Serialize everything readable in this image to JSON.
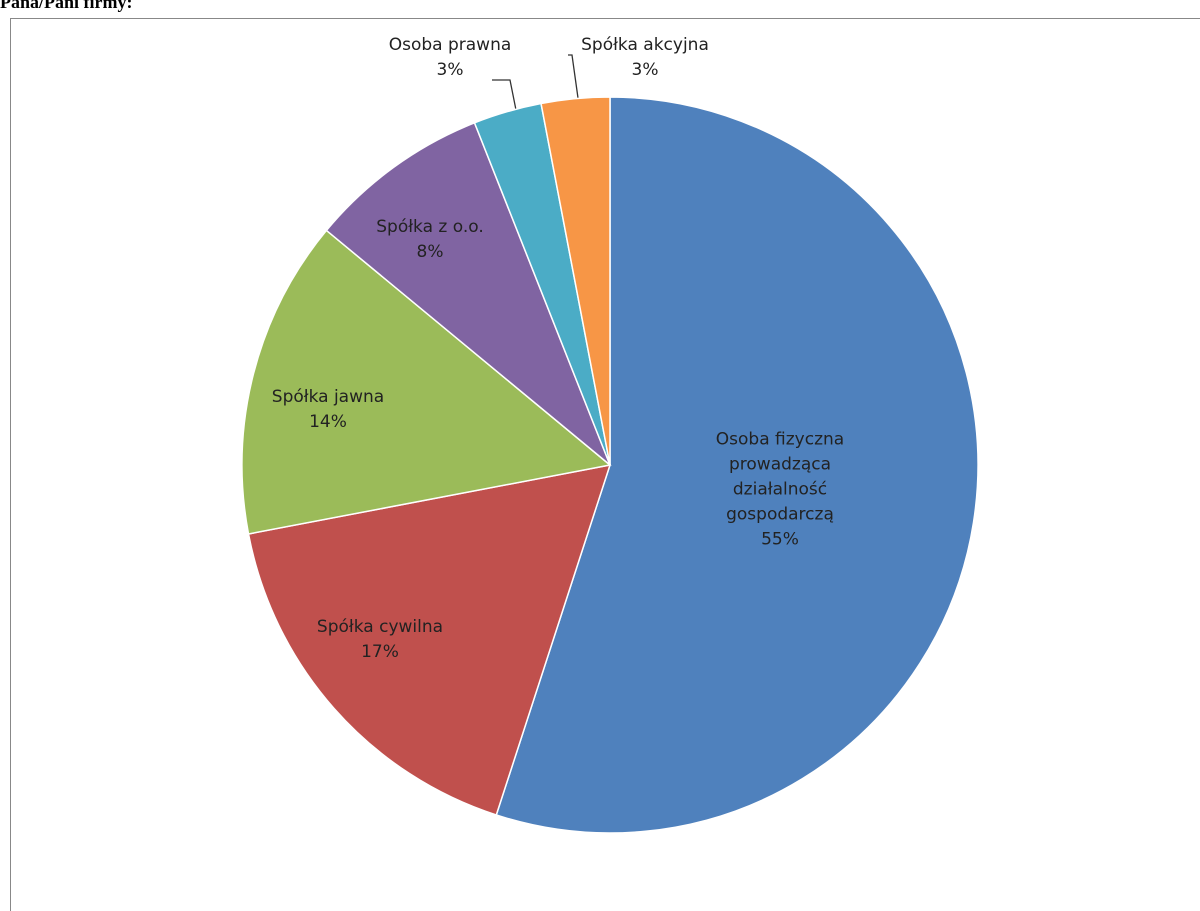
{
  "chart_data": {
    "type": "pie",
    "title": "Pana/Pani firmy:",
    "categories": [
      "Osoba fizyczna prowadząca działalność gospodarczą",
      "Spółka cywilna",
      "Spółka jawna",
      "Spółka z o.o.",
      "Osoba prawna",
      "Spółka akcyjna"
    ],
    "values": [
      55,
      17,
      14,
      8,
      3,
      3
    ],
    "value_labels": [
      "55%",
      "17%",
      "14%",
      "8%",
      "3%",
      "3%"
    ],
    "colors": [
      "#4f81bd",
      "#c0504d",
      "#9bbb59",
      "#8064a2",
      "#4bacc6",
      "#f79646"
    ]
  }
}
